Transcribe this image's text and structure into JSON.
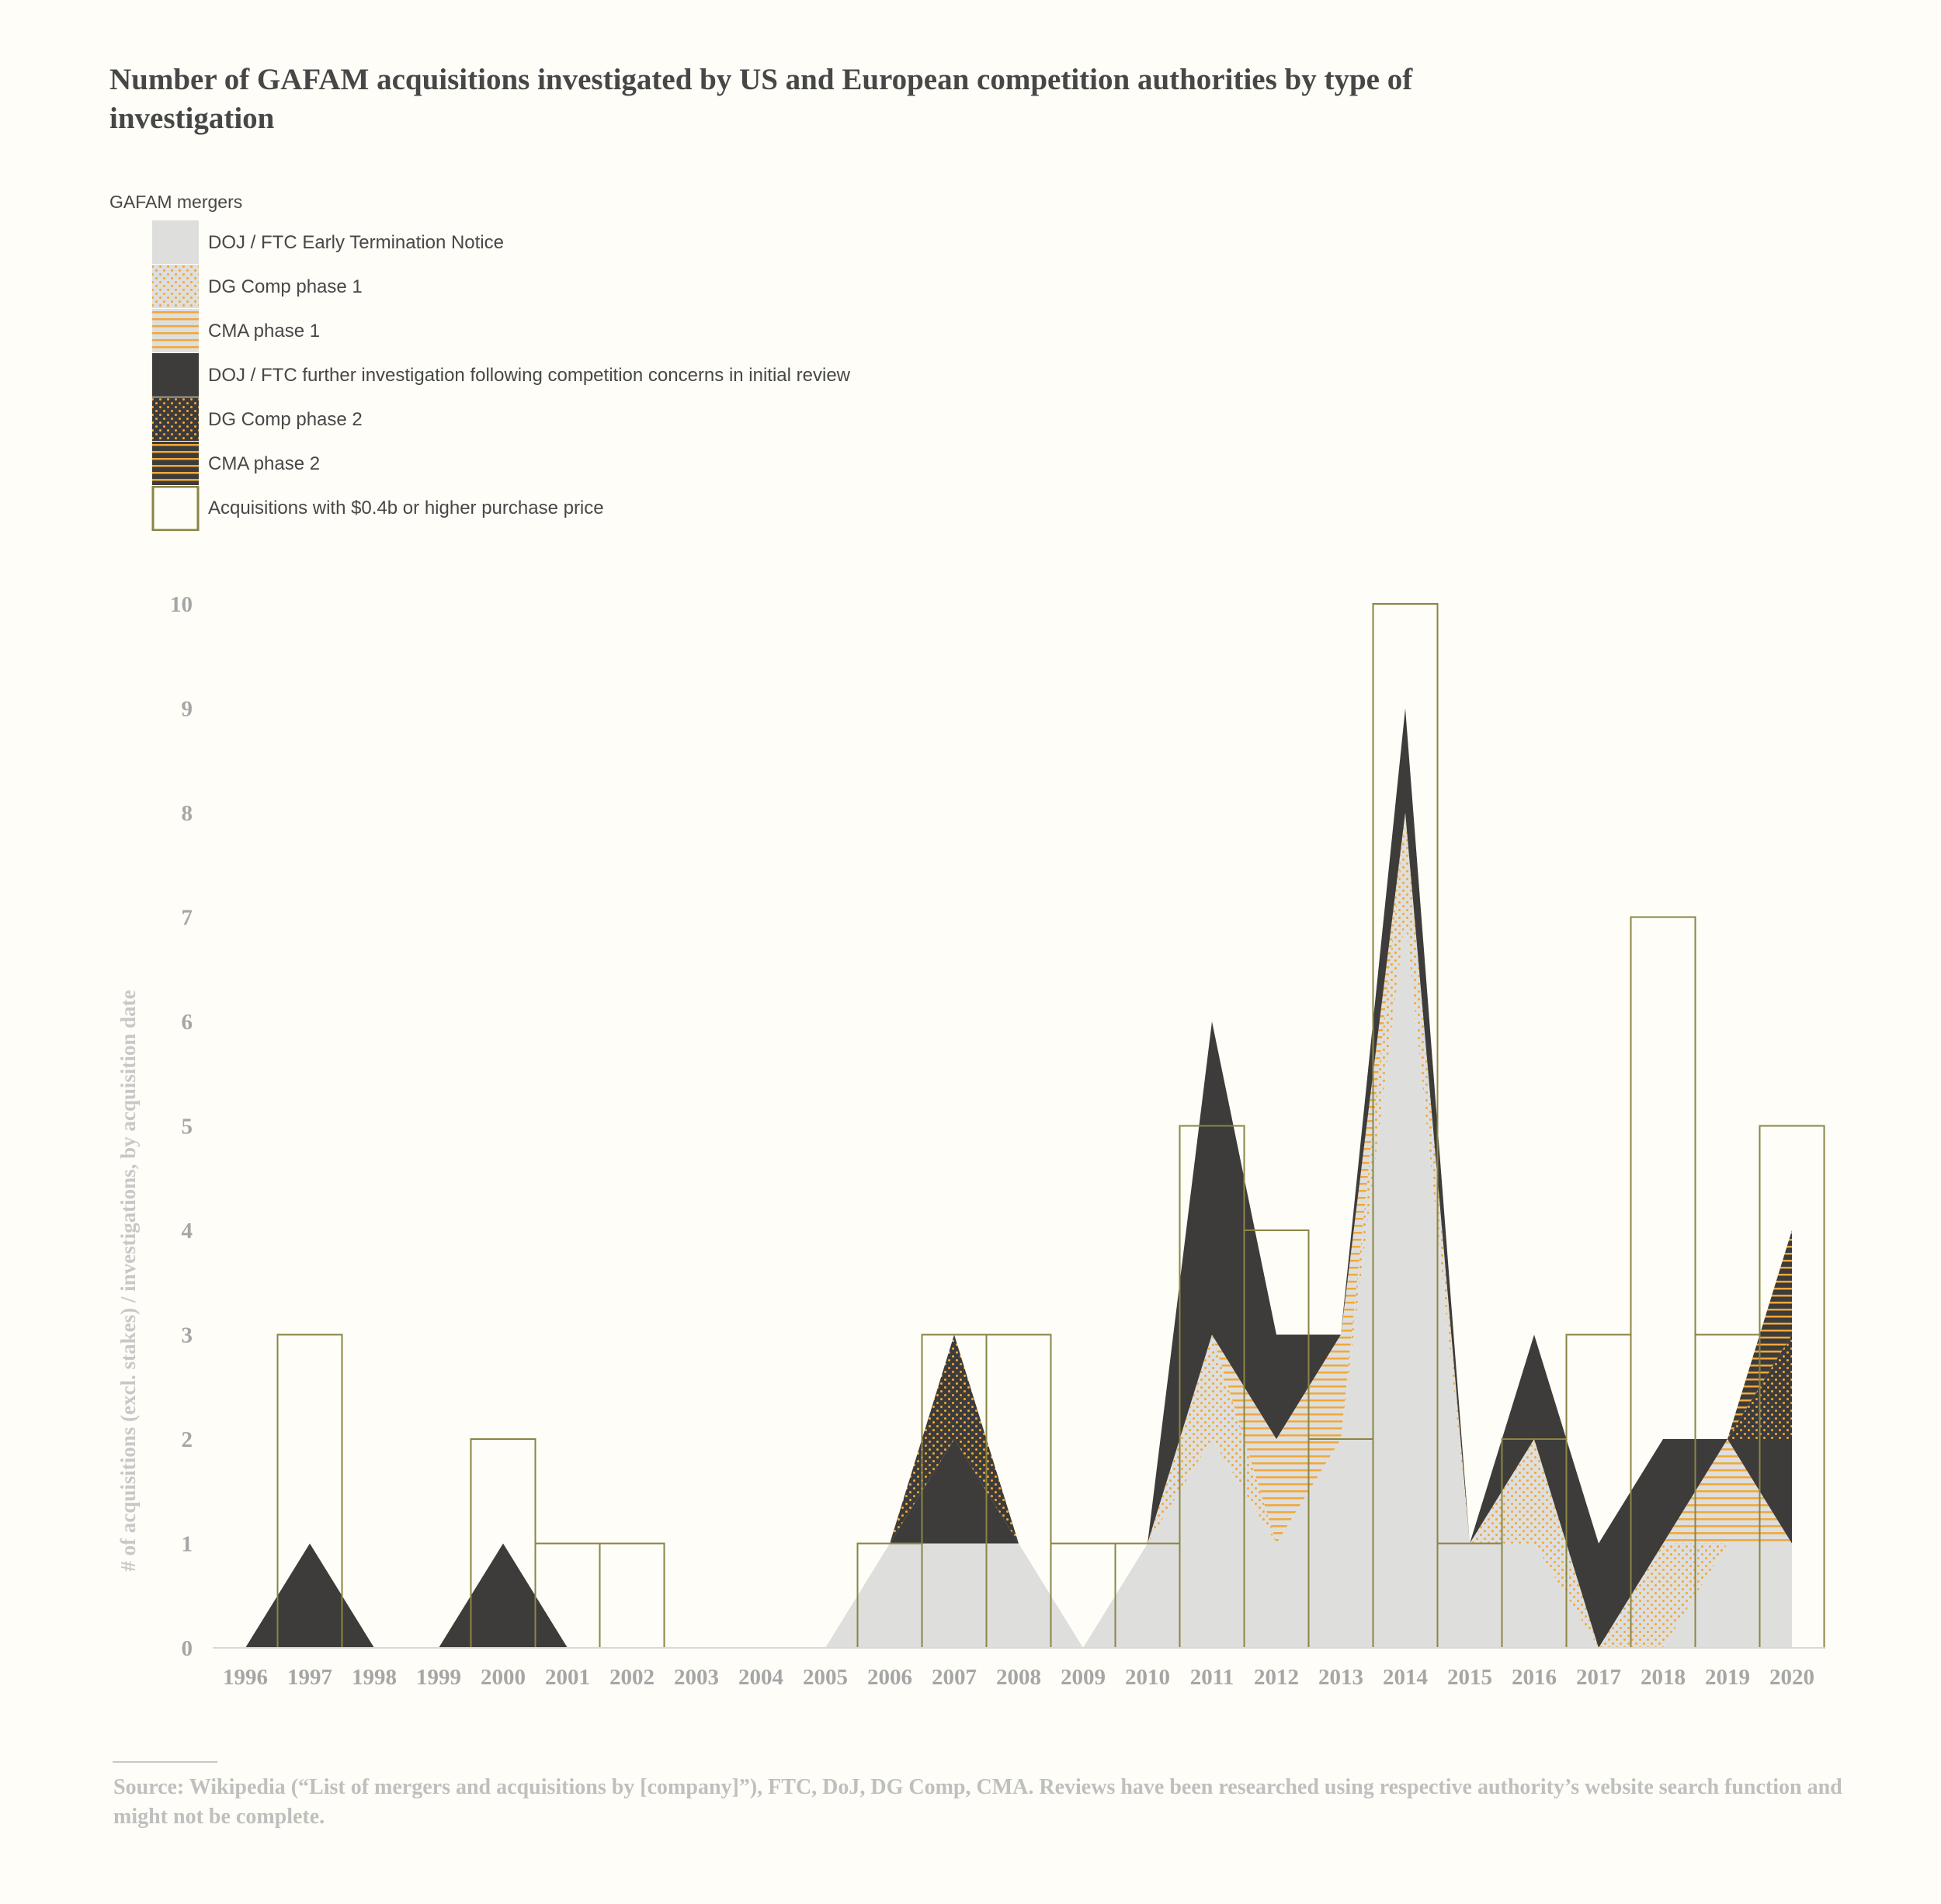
{
  "title": "Number of GAFAM acquisitions investigated by US and European competition authorities by type of investigation",
  "legend": {
    "title": "GAFAM mergers",
    "items": [
      {
        "key": "doj_ftc_early",
        "label": "DOJ / FTC Early Termination Notice"
      },
      {
        "key": "dg_comp_p1",
        "label": "DG Comp phase 1"
      },
      {
        "key": "cma_p1",
        "label": "CMA phase 1"
      },
      {
        "key": "doj_ftc_further",
        "label": "DOJ / FTC further investigation following competition concerns in initial review"
      },
      {
        "key": "dg_comp_p2",
        "label": "DG Comp phase 2"
      },
      {
        "key": "cma_p2",
        "label": "CMA phase 2"
      },
      {
        "key": "acquisitions",
        "label": "Acquisitions with $0.4b or higher purchase price"
      }
    ]
  },
  "source": "Source: Wikipedia (“List of mergers and acquisitions by [company]”), FTC, DoJ, DG Comp, CMA. Reviews have been researched using respective authority’s website search function and might not be complete.",
  "colors": {
    "background": "#fefdf7",
    "light_grey": "#dededd",
    "dark": "#3d3c3a",
    "orange": "#f0a83a",
    "olive": "#8a8545",
    "axis_text": "#a6a6a6"
  },
  "chart_data": {
    "type": "area",
    "x": [
      "1996",
      "1997",
      "1998",
      "1999",
      "2000",
      "2001",
      "2002",
      "2003",
      "2004",
      "2005",
      "2006",
      "2007",
      "2008",
      "2009",
      "2010",
      "2011",
      "2012",
      "2013",
      "2014",
      "2015",
      "2016",
      "2017",
      "2018",
      "2019",
      "2020"
    ],
    "ylabel": "# of acquisitions (excl. stakes) / investigations, by acquisition date",
    "ylim": [
      0,
      10
    ],
    "yticks": [
      0,
      1,
      2,
      3,
      4,
      5,
      6,
      7,
      8,
      9,
      10
    ],
    "stacked": true,
    "series": [
      {
        "name": "DOJ / FTC Early Termination Notice",
        "pattern": "solid-light",
        "values": [
          0,
          0,
          0,
          0,
          0,
          0,
          0,
          0,
          0,
          0,
          1,
          1,
          1,
          0,
          1,
          2,
          1,
          2,
          7,
          1,
          1,
          0,
          0,
          1,
          1
        ]
      },
      {
        "name": "DG Comp phase 1",
        "pattern": "dots-orange",
        "values": [
          0,
          0,
          0,
          0,
          0,
          0,
          0,
          0,
          0,
          0,
          0,
          0,
          0,
          0,
          0,
          1,
          0,
          0,
          1,
          0,
          1,
          0,
          1,
          0,
          0
        ]
      },
      {
        "name": "CMA phase 1",
        "pattern": "hlines-orange",
        "values": [
          0,
          0,
          0,
          0,
          0,
          0,
          0,
          0,
          0,
          0,
          0,
          0,
          0,
          0,
          0,
          0,
          1,
          1,
          0,
          0,
          0,
          0,
          0,
          1,
          0
        ]
      },
      {
        "name": "DOJ / FTC further investigation following competition concerns in initial review",
        "pattern": "solid-dark",
        "values": [
          0,
          1,
          0,
          0,
          1,
          0,
          0,
          0,
          0,
          0,
          0,
          1,
          0,
          0,
          0,
          3,
          1,
          0,
          1,
          0,
          1,
          1,
          1,
          0,
          1
        ]
      },
      {
        "name": "DG Comp phase 2",
        "pattern": "dots-dark",
        "values": [
          0,
          0,
          0,
          0,
          0,
          0,
          0,
          0,
          0,
          0,
          0,
          1,
          0,
          0,
          0,
          0,
          0,
          0,
          0,
          0,
          0,
          0,
          0,
          0,
          1
        ]
      },
      {
        "name": "CMA phase 2",
        "pattern": "hlines-dark",
        "values": [
          0,
          0,
          0,
          0,
          0,
          0,
          0,
          0,
          0,
          0,
          0,
          0,
          0,
          0,
          0,
          0,
          0,
          0,
          0,
          0,
          0,
          0,
          0,
          0,
          1
        ]
      }
    ],
    "bars": {
      "name": "Acquisitions with $0.4b or higher purchase price",
      "values": [
        0,
        3,
        0,
        0,
        2,
        1,
        1,
        0,
        0,
        0,
        1,
        3,
        3,
        1,
        1,
        5,
        4,
        2,
        10,
        1,
        2,
        3,
        7,
        3,
        5
      ]
    },
    "grid": false,
    "legend_position": "top-left"
  }
}
